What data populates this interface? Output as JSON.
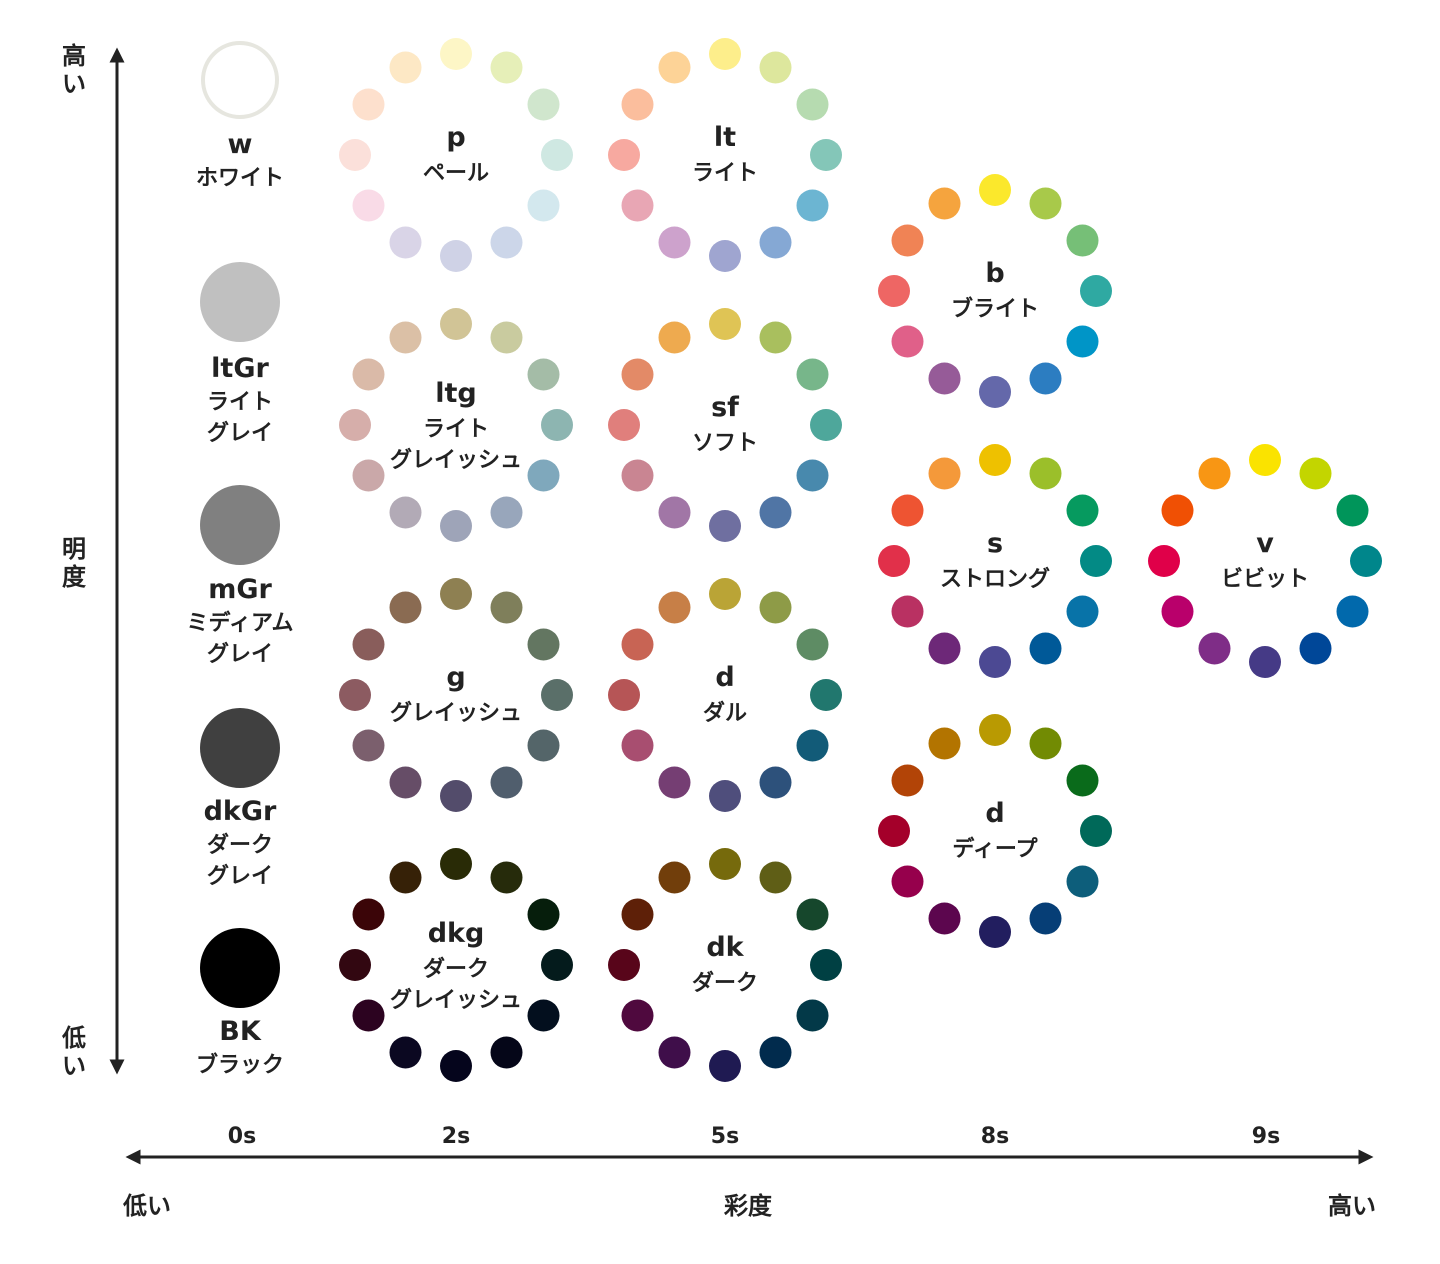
{
  "axes": {
    "vertical": {
      "high_label": [
        "高",
        "い"
      ],
      "title": [
        "明",
        "度"
      ],
      "low_label": [
        "低",
        "い"
      ]
    },
    "horizontal": {
      "low_label": "低い",
      "title": "彩度",
      "high_label": "高い",
      "ticks": [
        "0s",
        "2s",
        "5s",
        "8s",
        "9s"
      ]
    }
  },
  "neutrals": [
    {
      "code": "w",
      "name_lines": [
        "ホワイト"
      ],
      "color": "#ffffff",
      "stroke": "#e6e6df"
    },
    {
      "code": "ltGr",
      "name_lines": [
        "ライト",
        "グレイ"
      ],
      "color": "#c0c0c0"
    },
    {
      "code": "mGr",
      "name_lines": [
        "ミディアム",
        "グレイ"
      ],
      "color": "#808080"
    },
    {
      "code": "dkGr",
      "name_lines": [
        "ダーク",
        "グレイ"
      ],
      "color": "#404040"
    },
    {
      "code": "BK",
      "name_lines": [
        "ブラック"
      ],
      "color": "#000000"
    }
  ],
  "tones": [
    {
      "code": "p",
      "name_lines": [
        "ペール"
      ],
      "saturation": "2s",
      "colors": [
        "#fdf6c6",
        "#e6efb8",
        "#d0e6cd",
        "#cfe8e2",
        "#d3e8ee",
        "#ccd6e9",
        "#cfd2e6",
        "#d9d4e7",
        "#f9dbe7",
        "#fbe0da",
        "#fde0cd",
        "#fde8c5"
      ]
    },
    {
      "code": "lt",
      "name_lines": [
        "ライト"
      ],
      "saturation": "5s",
      "colors": [
        "#fdee8b",
        "#dde79d",
        "#b6dbb0",
        "#84c6b8",
        "#6cb5d2",
        "#85a8d4",
        "#9fa5d0",
        "#cda2cc",
        "#e8a6b4",
        "#f7a9a0",
        "#fbbe9d",
        "#fdd397"
      ]
    },
    {
      "code": "ltg",
      "name_lines": [
        "ライト",
        "グレイッシュ"
      ],
      "saturation": "2s",
      "colors": [
        "#d1c496",
        "#c9cb9f",
        "#a4bca7",
        "#8db5b1",
        "#7fa8bc",
        "#98a6bb",
        "#9ea4b8",
        "#b2aab6",
        "#caa8a9",
        "#d6aeaa",
        "#dabaa8",
        "#dbc0a6"
      ]
    },
    {
      "code": "sf",
      "name_lines": [
        "ソフト"
      ],
      "saturation": "5s",
      "colors": [
        "#dfc455",
        "#a9bf5e",
        "#77b68a",
        "#4ea79b",
        "#4889ad",
        "#5075a5",
        "#6f6fa0",
        "#a176a6",
        "#c98592",
        "#e07f7c",
        "#e38a67",
        "#eeaa4f"
      ]
    },
    {
      "code": "g",
      "name_lines": [
        "グレイッシュ"
      ],
      "saturation": "2s",
      "colors": [
        "#8e8052",
        "#7f7f5b",
        "#637661",
        "#5a6f69",
        "#546569",
        "#505e6d",
        "#534c6b",
        "#664d67",
        "#7b5f6d",
        "#8c5b61",
        "#895d5b",
        "#8a6b52"
      ]
    },
    {
      "code": "d",
      "name_lines": [
        "ダル"
      ],
      "saturation": "5s",
      "colors": [
        "#baa436",
        "#8e9b47",
        "#5e8c64",
        "#21776e",
        "#125b78",
        "#2d517b",
        "#4f4e7c",
        "#753e73",
        "#a84e70",
        "#b65556",
        "#c86454",
        "#c77f47"
      ]
    },
    {
      "code": "dkg",
      "name_lines": [
        "ダーク",
        "グレイッシュ"
      ],
      "saturation": "2s",
      "colors": [
        "#292b06",
        "#262b0b",
        "#061e0c",
        "#041b1c",
        "#030f1e",
        "#050618",
        "#05051c",
        "#0b0821",
        "#2c0320",
        "#320711",
        "#3b0508",
        "#362107"
      ]
    },
    {
      "code": "dk",
      "name_lines": [
        "ダーク"
      ],
      "saturation": "5s",
      "colors": [
        "#766a0c",
        "#5f5e16",
        "#16472c",
        "#004043",
        "#033948",
        "#012b4d",
        "#1f1a52",
        "#3f0e4a",
        "#4f093e",
        "#58051a",
        "#5e2008",
        "#713e0b"
      ]
    },
    {
      "code": "b",
      "name_lines": [
        "ブライト"
      ],
      "saturation": "8s",
      "colors": [
        "#fbe82c",
        "#a8c94a",
        "#76bf77",
        "#2fa9a2",
        "#0095c7",
        "#2c7dc1",
        "#6468aa",
        "#965b98",
        "#e06089",
        "#ee6664",
        "#f08355",
        "#f5a43e"
      ]
    },
    {
      "code": "s",
      "name_lines": [
        "ストロング"
      ],
      "saturation": "8s",
      "colors": [
        "#eec100",
        "#9bbf2a",
        "#069a5f",
        "#038a85",
        "#0873a8",
        "#005998",
        "#4c4993",
        "#6d2878",
        "#b93162",
        "#e1304a",
        "#ee5432",
        "#f4993a"
      ]
    },
    {
      "code": "d",
      "name_lines": [
        "ディープ"
      ],
      "saturation": "8s",
      "colors": [
        "#b99a02",
        "#728b03",
        "#0a6b1b",
        "#006959",
        "#0d5e7b",
        "#063e76",
        "#221e5f",
        "#5c064e",
        "#96004c",
        "#a4002a",
        "#b24407",
        "#b37400"
      ]
    },
    {
      "code": "v",
      "name_lines": [
        "ビビット"
      ],
      "saturation": "9s",
      "colors": [
        "#fae300",
        "#c3d500",
        "#00955a",
        "#00868b",
        "#0169ac",
        "#004798",
        "#453a86",
        "#7f2d87",
        "#b9006b",
        "#e00049",
        "#f05004",
        "#f89614"
      ]
    }
  ]
}
